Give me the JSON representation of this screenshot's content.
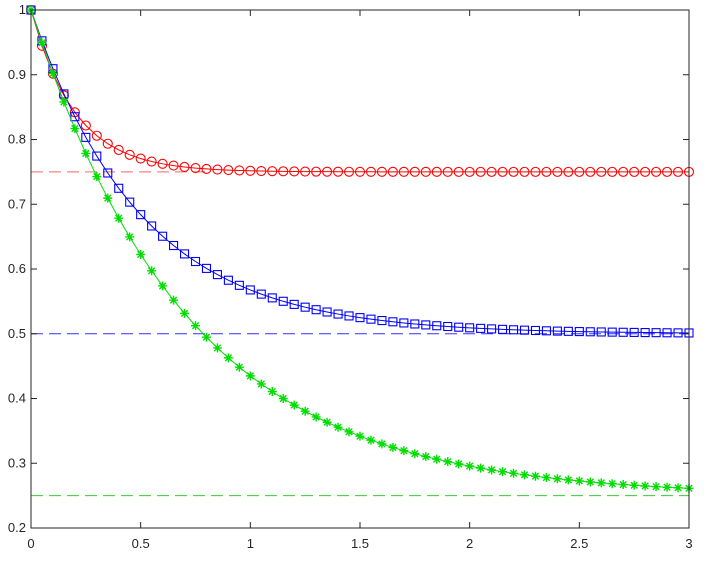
{
  "chart_data": {
    "type": "line",
    "title": "",
    "xlabel": "",
    "ylabel": "",
    "xlim": [
      0,
      3
    ],
    "ylim": [
      0.2,
      1.0
    ],
    "grid": false,
    "box": true,
    "xticks": [
      0,
      0.5,
      1,
      1.5,
      2,
      2.5,
      3
    ],
    "xtick_labels": [
      "0",
      "0.5",
      "1",
      "1.5",
      "2",
      "2.5",
      "3"
    ],
    "yticks": [
      0.2,
      0.3,
      0.4,
      0.5,
      0.6,
      0.7,
      0.8,
      0.9,
      1.0
    ],
    "ytick_labels": [
      "0.2",
      "0.3",
      "0.4",
      "0.5",
      "0.6",
      "0.7",
      "0.8",
      "0.9",
      "1"
    ],
    "sample_points": 61,
    "series": [
      {
        "marker": "circle",
        "color": "#ff0000",
        "line": "solid",
        "start": 1.0,
        "limit": 0.75,
        "rate": 5.0
      },
      {
        "marker": "square",
        "color": "#0000ff",
        "line": "solid",
        "start": 1.0,
        "limit": 0.5,
        "rate": 2.0
      },
      {
        "marker": "asterisk",
        "color": "#00dd00",
        "line": "solid",
        "start": 1.0,
        "limit": 0.25,
        "rate": 1.4
      }
    ],
    "reference_lines": [
      {
        "y": 0.75,
        "color": "#ff6666",
        "dash": "dashed",
        "x_range": [
          0,
          0.8
        ]
      },
      {
        "y": 0.5,
        "color": "#3333ff",
        "dash": "dashed",
        "x_range": [
          0,
          3
        ]
      },
      {
        "y": 0.25,
        "color": "#33cc33",
        "dash": "dashed",
        "x_range": [
          0,
          3
        ]
      }
    ]
  }
}
